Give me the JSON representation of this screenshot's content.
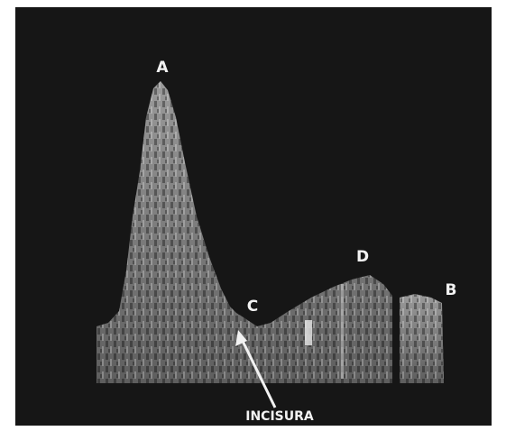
{
  "labels": {
    "a": "A",
    "c": "C",
    "d": "D",
    "b": "B"
  },
  "annotation": "INCISURA"
}
